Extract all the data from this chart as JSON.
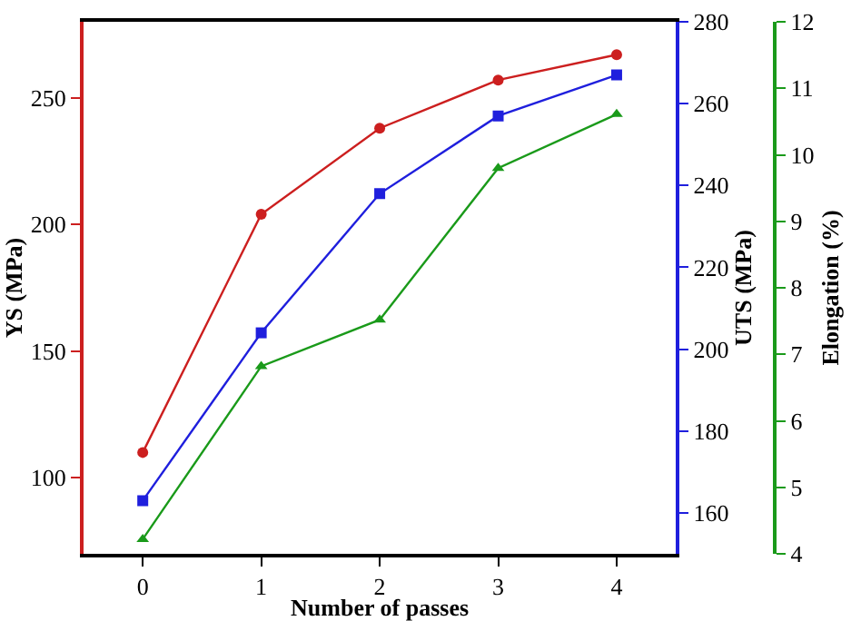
{
  "chart_data": {
    "type": "line",
    "xlabel": "Number of passes",
    "ylabel": "YS (MPa)",
    "y2label": "UTS (MPa)",
    "y3label": "Elongation (%)",
    "x": [
      0,
      1,
      2,
      3,
      4
    ],
    "xlim": [
      -0.5,
      4.5
    ],
    "xticks": [
      0,
      1,
      2,
      3,
      4
    ],
    "ylim": [
      70,
      280
    ],
    "yticks": [
      100,
      150,
      200,
      250
    ],
    "y2lim": [
      150,
      280
    ],
    "y2ticks": [
      160,
      180,
      200,
      220,
      240,
      260,
      280
    ],
    "y3lim": [
      4,
      12
    ],
    "y3ticks": [
      4,
      5,
      6,
      7,
      8,
      9,
      10,
      11,
      12
    ],
    "line_style": "solid",
    "series": [
      {
        "color": "#cc1f1f",
        "marker": "circle",
        "axis": "y",
        "values": [
          110,
          204,
          238,
          257,
          267
        ]
      },
      {
        "color": "#1f1fdd",
        "marker": "square",
        "axis": "y2",
        "values": [
          163,
          204,
          238,
          257,
          267
        ]
      },
      {
        "color": "#1a9a1a",
        "marker": "triangle",
        "axis": "y3",
        "values": [
          4.22,
          6.82,
          7.52,
          9.8,
          10.61
        ]
      }
    ]
  }
}
